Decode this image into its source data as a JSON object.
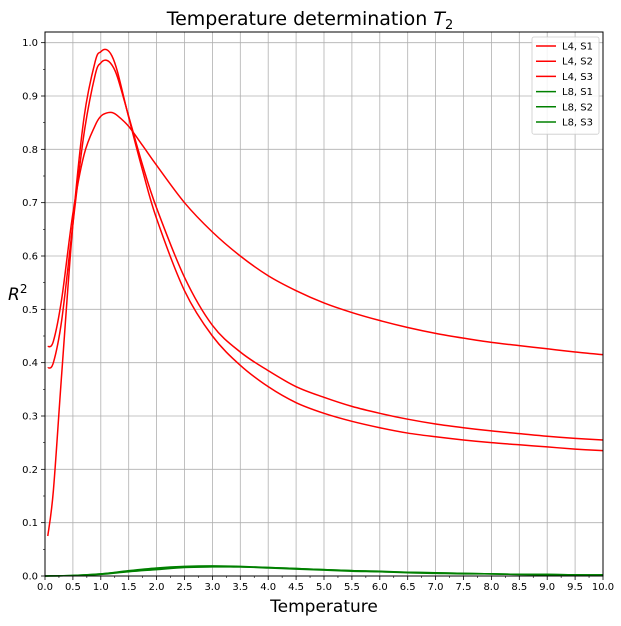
{
  "chart_data": {
    "type": "line",
    "title": "Temperature determination",
    "title_math": "T",
    "title_math_sub": "2",
    "xlabel": "Temperature",
    "ylabel": "R",
    "ylabel_sup": "2",
    "xlim": [
      0.0,
      10.0
    ],
    "ylim": [
      0.0,
      1.02
    ],
    "xticks": [
      "0.0",
      "0.5",
      "1.0",
      "1.5",
      "2.0",
      "2.5",
      "3.0",
      "3.5",
      "4.0",
      "4.5",
      "5.0",
      "5.5",
      "6.0",
      "6.5",
      "7.0",
      "7.5",
      "8.0",
      "8.5",
      "9.0",
      "9.5",
      "10.0"
    ],
    "yticks": [
      "0.0",
      "0.1",
      "0.2",
      "0.3",
      "0.4",
      "0.5",
      "0.6",
      "0.7",
      "0.8",
      "0.9",
      "1.0"
    ],
    "grid": true,
    "legend_position": "top-right",
    "series": [
      {
        "name": "L4, S1",
        "color": "#ff0000",
        "x": [
          0.05,
          0.15,
          0.3,
          0.5,
          0.7,
          0.9,
          1.0,
          1.1,
          1.2,
          1.3,
          1.5,
          1.75,
          2.0,
          2.5,
          3.0,
          3.5,
          4.0,
          4.5,
          5.0,
          5.5,
          6.0,
          6.5,
          7.0,
          7.5,
          8.0,
          8.5,
          9.0,
          9.5,
          10.0
        ],
        "y": [
          0.075,
          0.16,
          0.38,
          0.66,
          0.86,
          0.965,
          0.983,
          0.987,
          0.975,
          0.945,
          0.86,
          0.76,
          0.67,
          0.535,
          0.45,
          0.395,
          0.355,
          0.325,
          0.305,
          0.29,
          0.278,
          0.268,
          0.261,
          0.255,
          0.25,
          0.246,
          0.242,
          0.238,
          0.235
        ]
      },
      {
        "name": "L4, S2",
        "color": "#ff0000",
        "x": [
          0.05,
          0.15,
          0.3,
          0.5,
          0.7,
          0.9,
          1.0,
          1.1,
          1.2,
          1.3,
          1.5,
          1.75,
          2.0,
          2.5,
          3.0,
          3.5,
          4.0,
          4.5,
          5.0,
          5.5,
          6.0,
          6.5,
          7.0,
          7.5,
          8.0,
          8.5,
          9.0,
          9.5,
          10.0
        ],
        "y": [
          0.39,
          0.4,
          0.48,
          0.66,
          0.83,
          0.94,
          0.962,
          0.967,
          0.958,
          0.935,
          0.862,
          0.77,
          0.69,
          0.56,
          0.47,
          0.42,
          0.385,
          0.355,
          0.335,
          0.318,
          0.305,
          0.294,
          0.285,
          0.278,
          0.272,
          0.267,
          0.262,
          0.258,
          0.255
        ]
      },
      {
        "name": "L4, S3",
        "color": "#ff0000",
        "x": [
          0.05,
          0.15,
          0.3,
          0.5,
          0.7,
          0.9,
          1.0,
          1.1,
          1.2,
          1.3,
          1.5,
          1.75,
          2.0,
          2.5,
          3.0,
          3.5,
          4.0,
          4.5,
          5.0,
          5.5,
          6.0,
          6.5,
          7.0,
          7.5,
          8.0,
          8.5,
          9.0,
          9.5,
          10.0
        ],
        "y": [
          0.43,
          0.44,
          0.52,
          0.68,
          0.79,
          0.845,
          0.862,
          0.868,
          0.869,
          0.863,
          0.843,
          0.807,
          0.77,
          0.7,
          0.645,
          0.6,
          0.563,
          0.535,
          0.512,
          0.494,
          0.479,
          0.466,
          0.455,
          0.446,
          0.438,
          0.432,
          0.426,
          0.42,
          0.415
        ]
      },
      {
        "name": "L8, S1",
        "color": "#008000",
        "x": [
          0.0,
          0.5,
          1.0,
          1.5,
          2.0,
          2.5,
          3.0,
          3.5,
          4.0,
          4.5,
          5.0,
          5.5,
          6.0,
          6.5,
          7.0,
          7.5,
          8.0,
          8.5,
          9.0,
          9.5,
          10.0
        ],
        "y": [
          0.0,
          0.001,
          0.004,
          0.009,
          0.014,
          0.017,
          0.018,
          0.017,
          0.016,
          0.014,
          0.012,
          0.01,
          0.008,
          0.007,
          0.006,
          0.005,
          0.004,
          0.003,
          0.003,
          0.002,
          0.002
        ]
      },
      {
        "name": "L8, S2",
        "color": "#008000",
        "x": [
          0.0,
          0.5,
          1.0,
          1.5,
          2.0,
          2.5,
          3.0,
          3.5,
          4.0,
          4.5,
          5.0,
          5.5,
          6.0,
          6.5,
          7.0,
          7.5,
          8.0,
          8.5,
          9.0,
          9.5,
          10.0
        ],
        "y": [
          0.0,
          0.001,
          0.003,
          0.008,
          0.012,
          0.016,
          0.017,
          0.017,
          0.015,
          0.013,
          0.011,
          0.009,
          0.008,
          0.006,
          0.005,
          0.004,
          0.004,
          0.003,
          0.002,
          0.002,
          0.002
        ]
      },
      {
        "name": "L8, S3",
        "color": "#008000",
        "x": [
          0.0,
          0.5,
          1.0,
          1.5,
          2.0,
          2.5,
          3.0,
          3.5,
          4.0,
          4.5,
          5.0,
          5.5,
          6.0,
          6.5,
          7.0,
          7.5,
          8.0,
          8.5,
          9.0,
          9.5,
          10.0
        ],
        "y": [
          0.0,
          0.001,
          0.004,
          0.01,
          0.015,
          0.018,
          0.019,
          0.018,
          0.016,
          0.014,
          0.012,
          0.01,
          0.009,
          0.007,
          0.006,
          0.005,
          0.004,
          0.003,
          0.003,
          0.002,
          0.002
        ]
      }
    ]
  }
}
